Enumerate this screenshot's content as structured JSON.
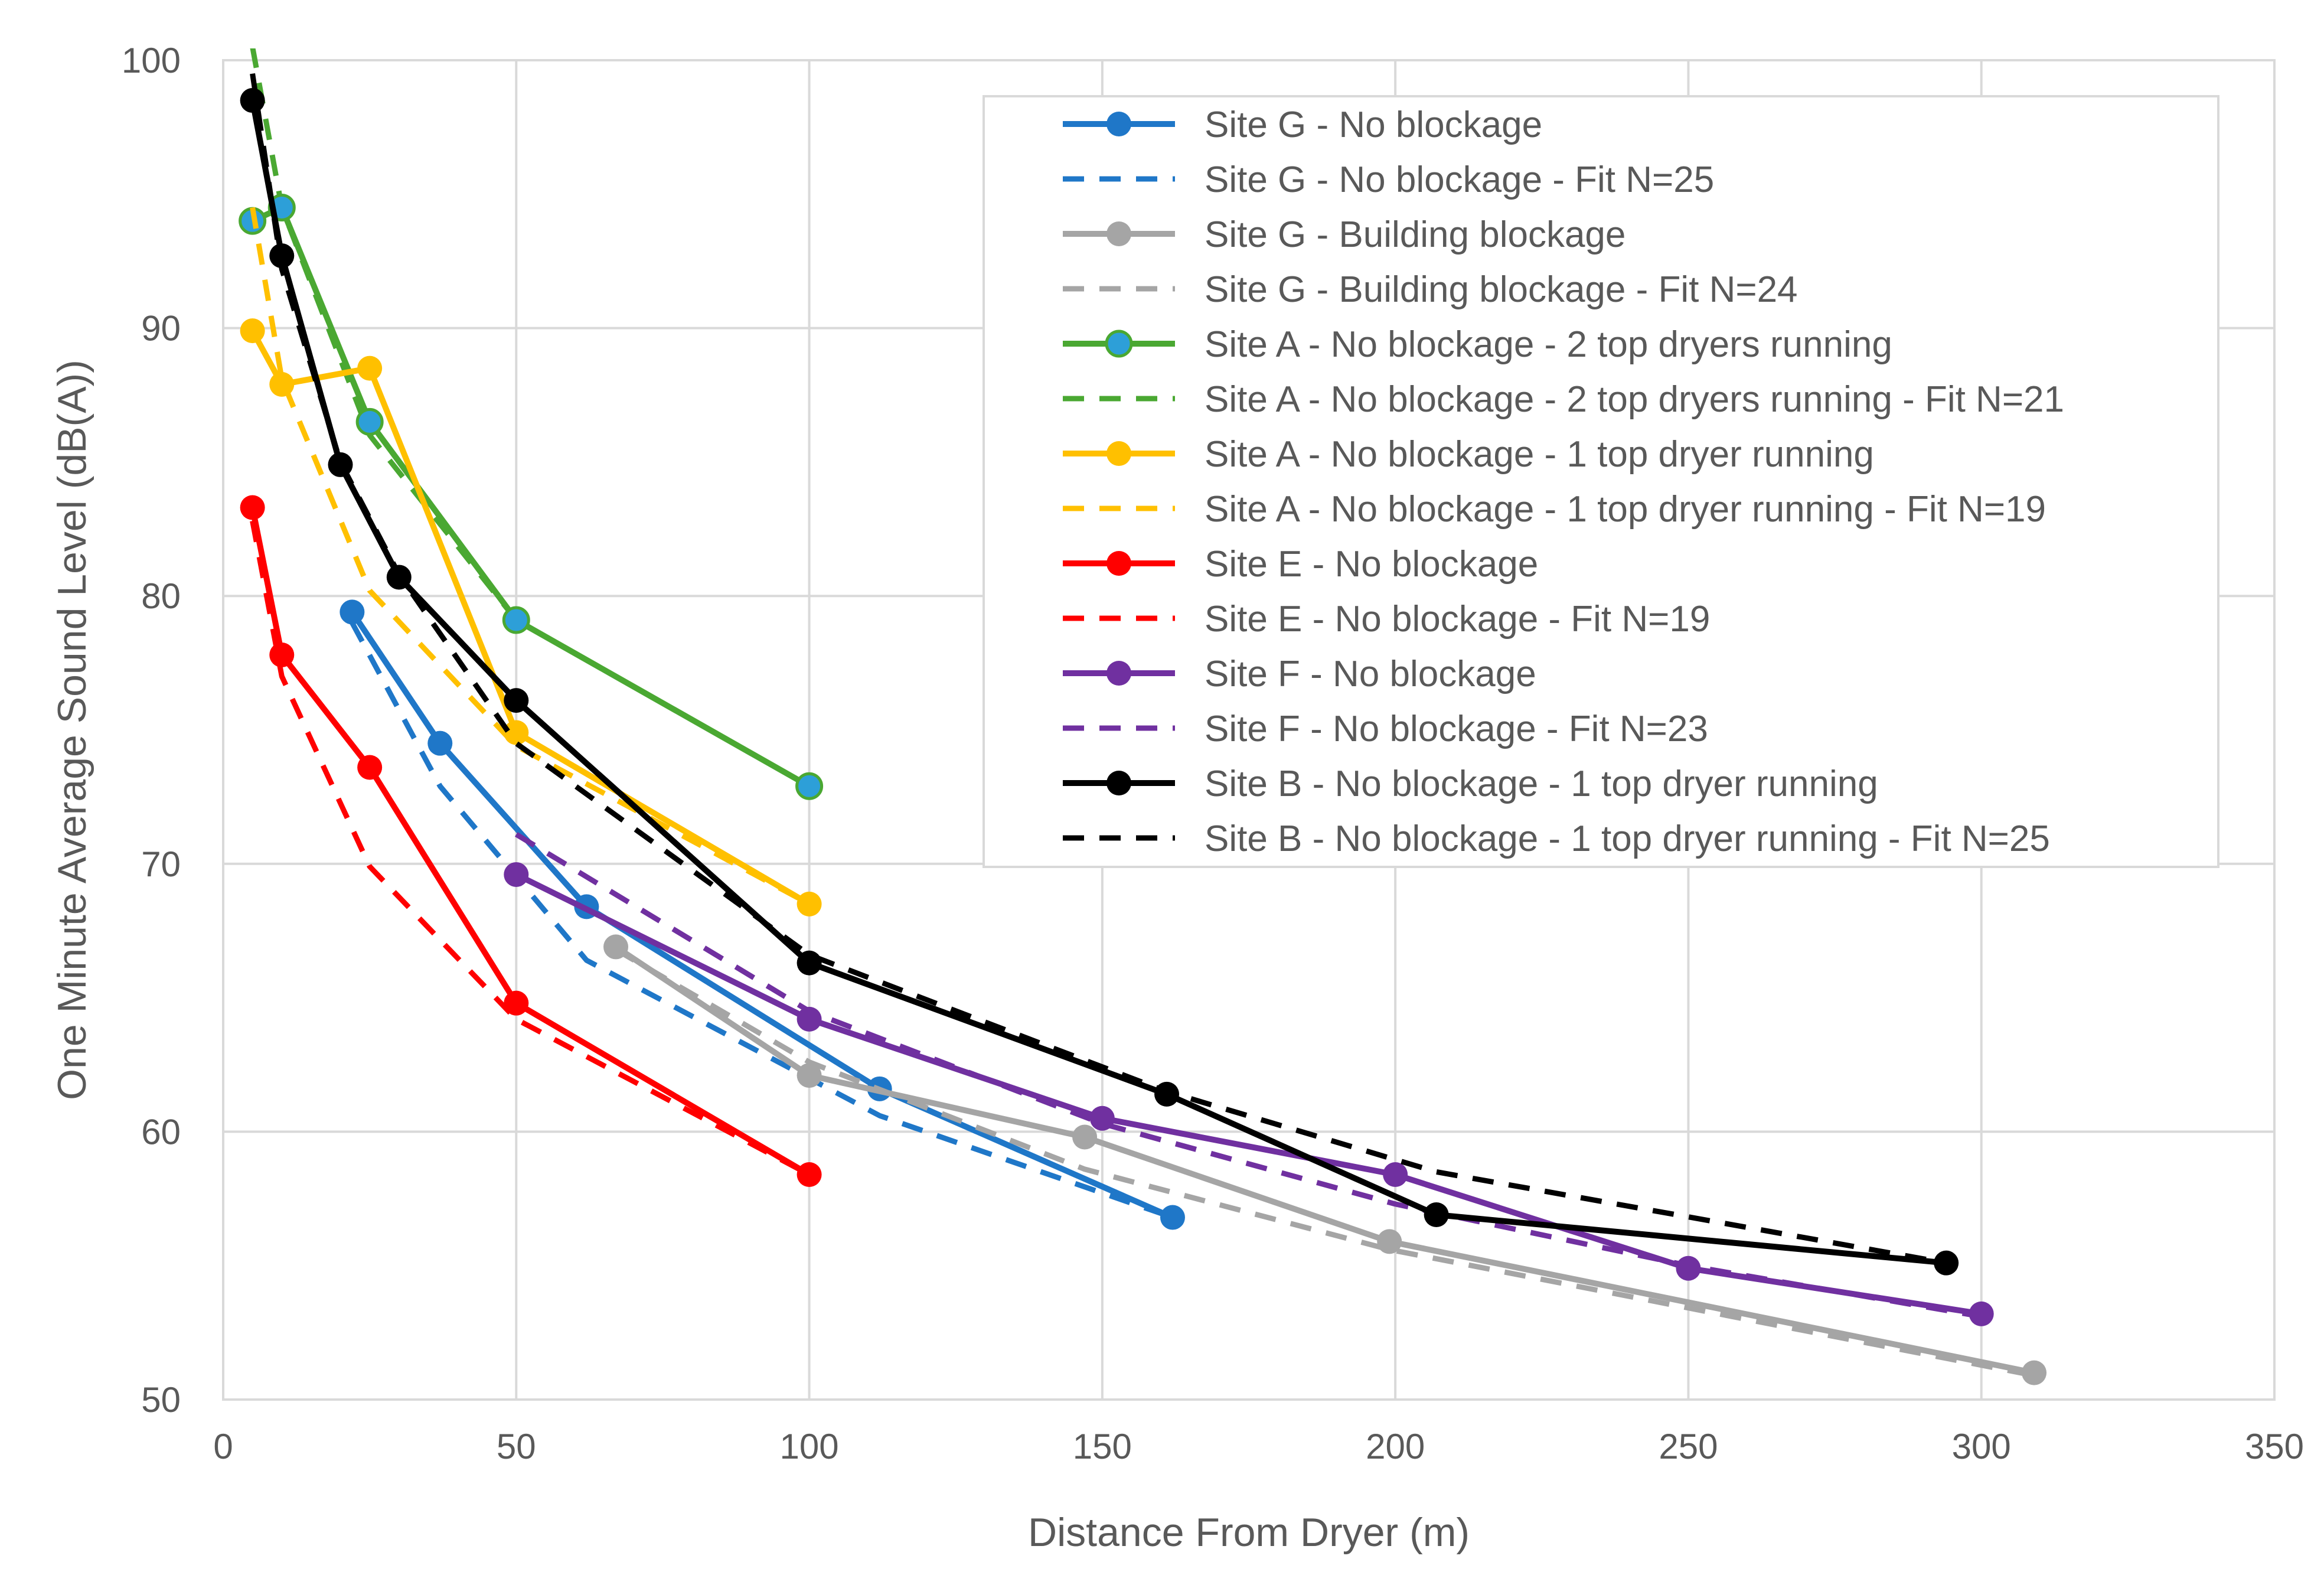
{
  "chart_data": {
    "type": "line",
    "title": "",
    "xlabel": "Distance From Dryer (m)",
    "ylabel": "One Minute Average Sound Level (dB(A))",
    "xlim": [
      0,
      350
    ],
    "ylim": [
      50,
      100
    ],
    "xticks": [
      "0",
      "50",
      "100",
      "150",
      "200",
      "250",
      "300",
      "350"
    ],
    "yticks": [
      "50",
      "60",
      "70",
      "80",
      "90",
      "100"
    ],
    "grid": true,
    "legend_position": "top-right",
    "series": [
      {
        "name": "Site G - No blockage",
        "color": "#1f77c8",
        "dash": false,
        "marker": true,
        "x": [
          22,
          37,
          62,
          112,
          162
        ],
        "y": [
          79.4,
          74.5,
          68.4,
          61.6,
          56.8
        ]
      },
      {
        "name": "Site G - No blockage - Fit N=25",
        "color": "#1f77c8",
        "dash": true,
        "marker": false,
        "x": [
          22,
          37,
          62,
          112,
          162
        ],
        "y": [
          79.0,
          72.9,
          66.4,
          60.6,
          56.8
        ]
      },
      {
        "name": "Site G - Building blockage",
        "color": "#a5a5a5",
        "dash": false,
        "marker": true,
        "x": [
          67,
          100,
          147,
          199,
          309
        ],
        "y": [
          66.9,
          62.1,
          59.8,
          55.9,
          51.0
        ]
      },
      {
        "name": "Site G - Building blockage - Fit N=24",
        "color": "#a5a5a5",
        "dash": true,
        "marker": false,
        "x": [
          67,
          100,
          147,
          199,
          309
        ],
        "y": [
          66.8,
          62.6,
          58.6,
          55.6,
          50.9
        ]
      },
      {
        "name": "Site A - No blockage - 2 top dryers running",
        "color": "#4aa832",
        "dash": false,
        "marker": true,
        "marker_fill": "#2d9fd8",
        "x": [
          5,
          10,
          25,
          50,
          100
        ],
        "y": [
          94.0,
          94.5,
          86.5,
          79.1,
          72.9
        ]
      },
      {
        "name": "Site A - No blockage - 2 top dryers running - Fit N=21",
        "color": "#4aa832",
        "dash": true,
        "marker": false,
        "x": [
          5,
          10,
          25,
          50,
          100
        ],
        "y": [
          100.5,
          94.5,
          86.0,
          79.1,
          72.9
        ]
      },
      {
        "name": "Site A - No blockage - 1 top dryer running",
        "color": "#ffc000",
        "dash": false,
        "marker": true,
        "x": [
          5,
          10,
          25,
          50,
          100
        ],
        "y": [
          89.9,
          87.9,
          88.5,
          74.9,
          68.5
        ]
      },
      {
        "name": "Site A - No blockage - 1 top dryer running - Fit N=19",
        "color": "#ffc000",
        "dash": true,
        "marker": false,
        "x": [
          5,
          10,
          25,
          50,
          100
        ],
        "y": [
          94.5,
          88.1,
          80.2,
          74.4,
          68.5
        ]
      },
      {
        "name": "Site E - No blockage",
        "color": "#ff0000",
        "dash": false,
        "marker": true,
        "x": [
          5,
          10,
          25,
          50,
          100
        ],
        "y": [
          83.3,
          77.8,
          73.6,
          64.8,
          58.4
        ]
      },
      {
        "name": "Site E - No blockage - Fit N=19",
        "color": "#ff0000",
        "dash": true,
        "marker": false,
        "x": [
          5,
          10,
          25,
          50,
          100
        ],
        "y": [
          82.8,
          77.0,
          69.9,
          64.2,
          58.4
        ]
      },
      {
        "name": "Site F - No blockage",
        "color": "#7030a0",
        "dash": false,
        "marker": true,
        "x": [
          50,
          100,
          150,
          200,
          250,
          300
        ],
        "y": [
          69.6,
          64.2,
          60.5,
          58.4,
          54.9,
          53.2
        ]
      },
      {
        "name": "Site F - No blockage - Fit N=23",
        "color": "#7030a0",
        "dash": true,
        "marker": false,
        "x": [
          50,
          100,
          150,
          200,
          250,
          300
        ],
        "y": [
          71.1,
          64.5,
          60.3,
          57.3,
          55.0,
          53.1
        ]
      },
      {
        "name": "Site B - No blockage - 1 top dryer running",
        "color": "#000000",
        "dash": false,
        "marker": true,
        "x": [
          5,
          10,
          20,
          30,
          50,
          100,
          161,
          207,
          294
        ],
        "y": [
          98.5,
          92.7,
          84.9,
          80.7,
          76.1,
          66.3,
          61.4,
          56.9,
          55.1
        ]
      },
      {
        "name": "Site B - No blockage - 1 top dryer running - Fit N=25",
        "color": "#000000",
        "dash": true,
        "marker": false,
        "x": [
          5,
          10,
          20,
          30,
          50,
          100,
          161,
          207,
          294
        ],
        "y": [
          99.5,
          92.2,
          85.0,
          80.8,
          74.5,
          66.6,
          61.5,
          58.5,
          55.1
        ]
      }
    ]
  }
}
